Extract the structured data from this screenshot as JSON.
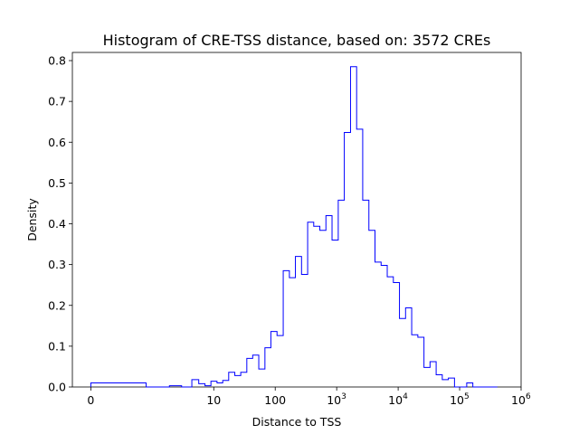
{
  "chart_data": {
    "type": "histogram",
    "title": "Histogram of CRE-TSS distance, based on: 3572 CREs",
    "xlabel": "Distance to TSS",
    "ylabel": "Density",
    "x_scale": "symlog",
    "xlim": [
      -0.3,
      1000000
    ],
    "ylim": [
      0,
      0.82
    ],
    "grid": false,
    "legend": "none",
    "color": "#0000ff",
    "x_ticks": [
      {
        "value": 0,
        "label": "0",
        "exp": ""
      },
      {
        "value": 10,
        "label": "10",
        "exp": ""
      },
      {
        "value": 100,
        "label": "100",
        "exp": ""
      },
      {
        "value": 1000,
        "label": "10",
        "exp": "3"
      },
      {
        "value": 10000,
        "label": "10",
        "exp": "4"
      },
      {
        "value": 100000,
        "label": "10",
        "exp": "5"
      },
      {
        "value": 1000000,
        "label": "10",
        "exp": "6"
      }
    ],
    "y_ticks": [
      {
        "value": 0.0,
        "label": "0.0"
      },
      {
        "value": 0.1,
        "label": "0.1"
      },
      {
        "value": 0.2,
        "label": "0.2"
      },
      {
        "value": 0.3,
        "label": "0.3"
      },
      {
        "value": 0.4,
        "label": "0.4"
      },
      {
        "value": 0.5,
        "label": "0.5"
      },
      {
        "value": 0.6,
        "label": "0.6"
      },
      {
        "value": 0.7,
        "label": "0.7"
      },
      {
        "value": 0.8,
        "label": "0.8"
      }
    ],
    "bin_edges": [
      0,
      0.9,
      1.9,
      3.0,
      4.4,
      5.7,
      7.2,
      9.0,
      11.3,
      14.0,
      17.5,
      22,
      27.5,
      34.5,
      43,
      54,
      68,
      85,
      107,
      135,
      170,
      213,
      268,
      337,
      423,
      532,
      668,
      840,
      1060,
      1330,
      1680,
      2110,
      2650,
      3340,
      4200,
      5280,
      6640,
      8350,
      10500,
      13200,
      16600,
      20900,
      26300,
      33000,
      41500,
      52200,
      65600,
      82500,
      103700,
      130400,
      164000,
      206000,
      259000,
      326000,
      410000
    ],
    "values": [
      0.01,
      0.0,
      0.003,
      0.0,
      0.018,
      0.008,
      0.003,
      0.014,
      0.01,
      0.016,
      0.036,
      0.028,
      0.036,
      0.07,
      0.078,
      0.044,
      0.096,
      0.136,
      0.126,
      0.285,
      0.268,
      0.32,
      0.276,
      0.404,
      0.394,
      0.384,
      0.42,
      0.36,
      0.458,
      0.624,
      0.785,
      0.632,
      0.458,
      0.384,
      0.306,
      0.298,
      0.27,
      0.256,
      0.168,
      0.194,
      0.128,
      0.122,
      0.048,
      0.062,
      0.03,
      0.018,
      0.022,
      0.0,
      0.0,
      0.01,
      0.0,
      0.0,
      0.0,
      0.0
    ]
  }
}
